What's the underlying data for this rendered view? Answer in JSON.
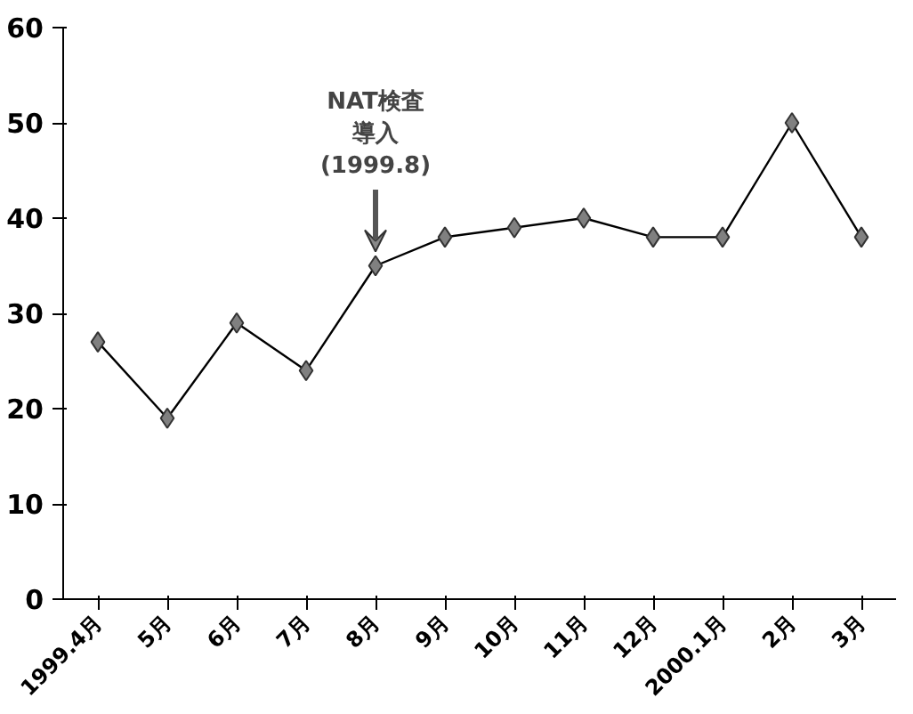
{
  "chart_data": {
    "type": "line",
    "categories": [
      "1999.4月",
      "5月",
      "6月",
      "7月",
      "8月",
      "9月",
      "10月",
      "11月",
      "12月",
      "2000.1月",
      "2月",
      "3月"
    ],
    "values": [
      27,
      19,
      29,
      24,
      35,
      38,
      39,
      40,
      38,
      38,
      50,
      38
    ],
    "color": "#808080",
    "marker": "diamond",
    "line_style": "solid",
    "grid": false,
    "ylim": [
      0,
      60
    ],
    "yticks": [
      0,
      10,
      20,
      30,
      40,
      50,
      60
    ],
    "annotations": [
      {
        "text": "NAT検査導入(1999.8)",
        "x": "8月",
        "y": 35
      }
    ]
  }
}
